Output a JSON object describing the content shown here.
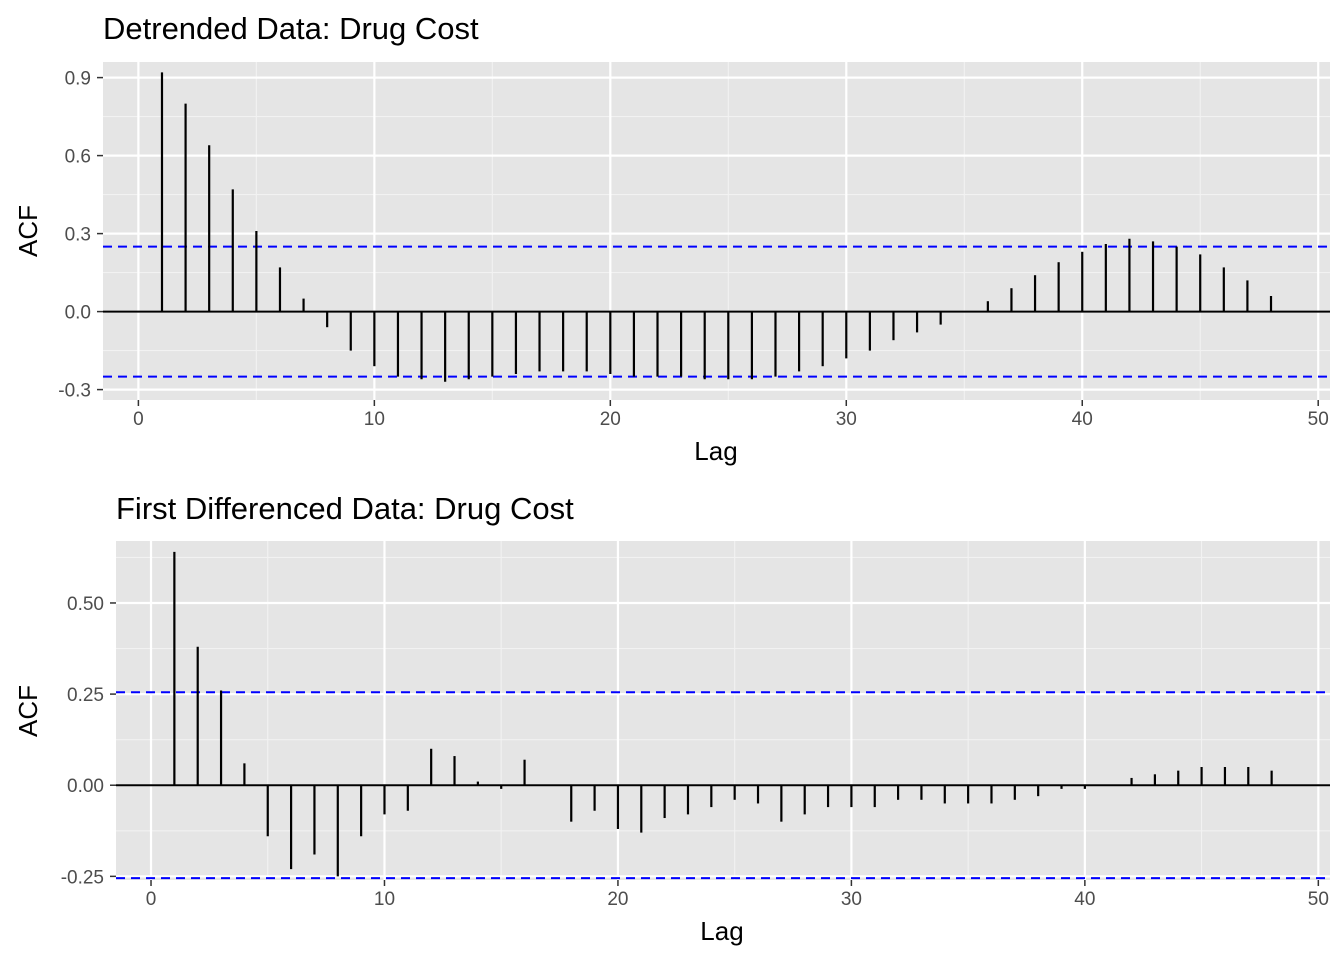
{
  "chart_data": [
    {
      "type": "bar",
      "title": "Detrended Data: Drug Cost",
      "xlabel": "Lag",
      "ylabel": "ACF",
      "xlim": [
        -1.5,
        50.5
      ],
      "ylim": [
        -0.34,
        0.96
      ],
      "x_ticks": [
        0,
        10,
        20,
        30,
        40,
        50
      ],
      "x_tick_labels": [
        "0",
        "10",
        "20",
        "30",
        "40",
        "50"
      ],
      "y_ticks": [
        -0.3,
        0,
        0.3,
        0.6,
        0.9
      ],
      "y_tick_labels": [
        "-0.3",
        "0.0",
        "0.3",
        "0.6",
        "0.9"
      ],
      "confidence_limit": 0.25,
      "grid": true,
      "x": [
        1,
        2,
        3,
        4,
        5,
        6,
        7,
        8,
        9,
        10,
        11,
        12,
        13,
        14,
        15,
        16,
        17,
        18,
        19,
        20,
        21,
        22,
        23,
        24,
        25,
        26,
        27,
        28,
        29,
        30,
        31,
        32,
        33,
        34,
        35,
        36,
        37,
        38,
        39,
        40,
        41,
        42,
        43,
        44,
        45,
        46,
        47,
        48
      ],
      "values": [
        0.92,
        0.8,
        0.64,
        0.47,
        0.31,
        0.17,
        0.05,
        -0.06,
        -0.15,
        -0.21,
        -0.25,
        -0.26,
        -0.27,
        -0.26,
        -0.25,
        -0.24,
        -0.23,
        -0.23,
        -0.23,
        -0.24,
        -0.25,
        -0.25,
        -0.25,
        -0.26,
        -0.26,
        -0.26,
        -0.25,
        -0.23,
        -0.21,
        -0.18,
        -0.15,
        -0.11,
        -0.08,
        -0.05,
        0.0,
        0.04,
        0.09,
        0.14,
        0.19,
        0.23,
        0.26,
        0.28,
        0.27,
        0.25,
        0.22,
        0.17,
        0.12,
        0.06
      ]
    },
    {
      "type": "bar",
      "title": "First Differenced Data: Drug Cost",
      "xlabel": "Lag",
      "ylabel": "ACF",
      "xlim": [
        -1.5,
        50.5
      ],
      "ylim": [
        -0.26,
        0.67
      ],
      "x_ticks": [
        0,
        10,
        20,
        30,
        40,
        50
      ],
      "x_tick_labels": [
        "0",
        "10",
        "20",
        "30",
        "40",
        "50"
      ],
      "y_ticks": [
        -0.25,
        0,
        0.25,
        0.5
      ],
      "y_tick_labels": [
        "-0.25",
        "0.00",
        "0.25",
        "0.50"
      ],
      "confidence_limit": 0.255,
      "grid": true,
      "x": [
        1,
        2,
        3,
        4,
        5,
        6,
        7,
        8,
        9,
        10,
        11,
        12,
        13,
        14,
        15,
        16,
        17,
        18,
        19,
        20,
        21,
        22,
        23,
        24,
        25,
        26,
        27,
        28,
        29,
        30,
        31,
        32,
        33,
        34,
        35,
        36,
        37,
        38,
        39,
        40,
        41,
        42,
        43,
        44,
        45,
        46,
        47,
        48
      ],
      "values": [
        0.64,
        0.38,
        0.26,
        0.06,
        -0.14,
        -0.23,
        -0.19,
        -0.25,
        -0.14,
        -0.08,
        -0.07,
        0.1,
        0.08,
        0.01,
        -0.01,
        0.07,
        0.0,
        -0.1,
        -0.07,
        -0.12,
        -0.13,
        -0.09,
        -0.08,
        -0.06,
        -0.04,
        -0.05,
        -0.1,
        -0.08,
        -0.06,
        -0.06,
        -0.06,
        -0.04,
        -0.04,
        -0.05,
        -0.05,
        -0.05,
        -0.04,
        -0.03,
        -0.01,
        -0.01,
        0.0,
        0.02,
        0.03,
        0.04,
        0.05,
        0.05,
        0.05,
        0.04
      ]
    }
  ]
}
